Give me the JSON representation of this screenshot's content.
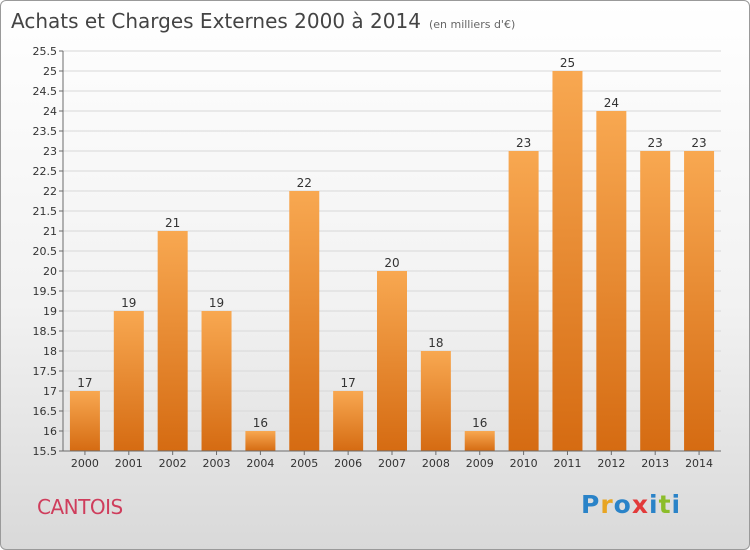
{
  "header": {
    "title": "Achats et Charges Externes 2000 à 2014",
    "unit": "(en milliers d'€)"
  },
  "commune": "CANTOIS",
  "logo": {
    "text": "Proxiti",
    "colors": [
      "#2a83c8",
      "#e8a523",
      "#2a83c8",
      "#e23a3a",
      "#2a83c8",
      "#8cbd2a",
      "#2a83c8"
    ]
  },
  "colors": {
    "bar_light": "#f8a851",
    "bar_dark": "#d56b12",
    "grid": "#d8d8d8",
    "axis": "#6b6b6b"
  },
  "chart_data": {
    "type": "bar",
    "title": "Achats et Charges Externes 2000 à 2014",
    "subtitle": "(en milliers d'€)",
    "xlabel": "",
    "ylabel": "",
    "categories": [
      "2000",
      "2001",
      "2002",
      "2003",
      "2004",
      "2005",
      "2006",
      "2007",
      "2008",
      "2009",
      "2010",
      "2011",
      "2012",
      "2013",
      "2014"
    ],
    "values": [
      17,
      19,
      21,
      19,
      16,
      22,
      17,
      20,
      18,
      16,
      23,
      25,
      24,
      23,
      23
    ],
    "data_labels": [
      "17",
      "19",
      "21",
      "19",
      "16",
      "22",
      "17",
      "20",
      "18",
      "16",
      "23",
      "25",
      "24",
      "23",
      "23"
    ],
    "ylim": [
      15.5,
      25.5
    ],
    "yticks": [
      15.5,
      16,
      16.5,
      17,
      17.5,
      18,
      18.5,
      19,
      19.5,
      20,
      20.5,
      21,
      21.5,
      22,
      22.5,
      23,
      23.5,
      24,
      24.5,
      25,
      25.5
    ],
    "ytick_labels": [
      "15.5",
      "16",
      "16.5",
      "17",
      "17.5",
      "18",
      "18.5",
      "19",
      "19.5",
      "20",
      "20.5",
      "21",
      "21.5",
      "22",
      "22.5",
      "23",
      "23.5",
      "24",
      "24.5",
      "25",
      "25.5"
    ],
    "grid": true
  }
}
